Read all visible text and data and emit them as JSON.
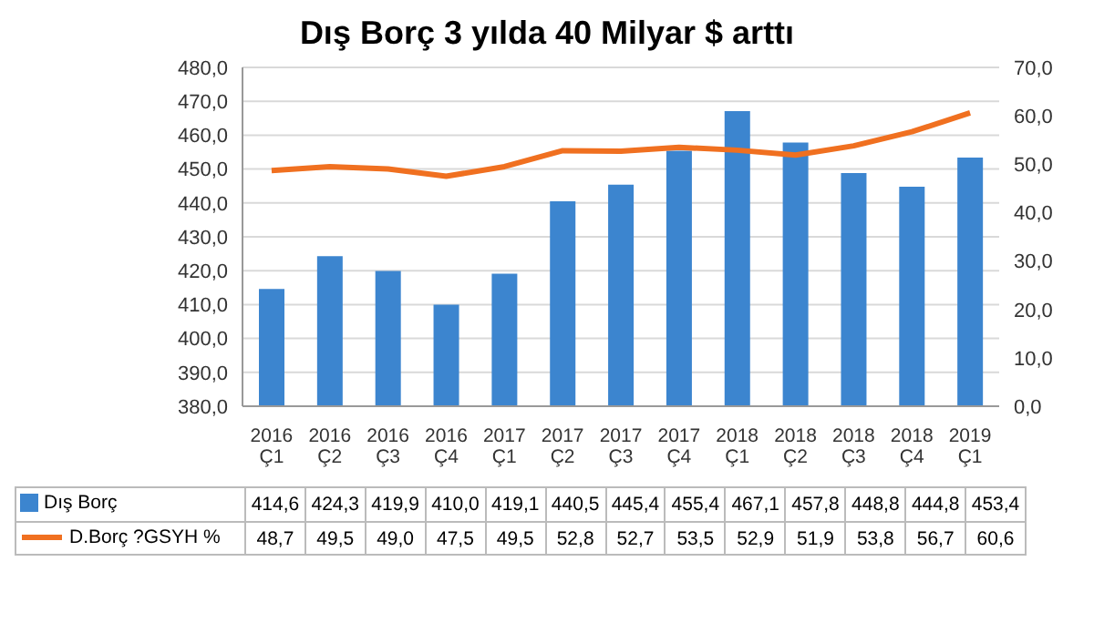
{
  "chart_data": {
    "type": "bar",
    "title": "Dış Borç 3 yılda 40 Milyar $ arttı",
    "categories": [
      "2016 Ç1",
      "2016 Ç2",
      "2016 Ç3",
      "2016 Ç4",
      "2017 Ç1",
      "2017 Ç2",
      "2017 Ç3",
      "2017 Ç4",
      "2018 Ç1",
      "2018 Ç2",
      "2018 Ç3",
      "2018 Ç4",
      "2019 Ç1"
    ],
    "series": [
      {
        "name": "Dış Borç",
        "color": "#3c85cf",
        "values": [
          414.6,
          424.3,
          419.9,
          410.0,
          419.1,
          440.5,
          445.4,
          455.4,
          467.1,
          457.8,
          448.8,
          444.8,
          453.4
        ],
        "value_labels": [
          "414,6",
          "424,3",
          "419,9",
          "410,0",
          "419,1",
          "440,5",
          "445,4",
          "455,4",
          "467,1",
          "457,8",
          "448,8",
          "444,8",
          "453,4"
        ]
      },
      {
        "name": "D.Borç ?GSYH %",
        "type": "line",
        "axis": "y2",
        "color": "#f07020",
        "values": [
          48.7,
          49.5,
          49.0,
          47.5,
          49.5,
          52.8,
          52.7,
          53.5,
          52.9,
          51.9,
          53.8,
          56.7,
          60.6
        ],
        "value_labels": [
          "48,7",
          "49,5",
          "49,0",
          "47,5",
          "49,5",
          "52,8",
          "52,7",
          "53,5",
          "52,9",
          "51,9",
          "53,8",
          "56,7",
          "60,6"
        ]
      }
    ],
    "ylim": [
      380,
      480
    ],
    "yticks": [
      {
        "value": 380,
        "label": "380,0"
      },
      {
        "value": 390,
        "label": "390,0"
      },
      {
        "value": 400,
        "label": "400,0"
      },
      {
        "value": 410,
        "label": "410,0"
      },
      {
        "value": 420,
        "label": "420,0"
      },
      {
        "value": 430,
        "label": "430,0"
      },
      {
        "value": 440,
        "label": "440,0"
      },
      {
        "value": 450,
        "label": "450,0"
      },
      {
        "value": 460,
        "label": "460,0"
      },
      {
        "value": 470,
        "label": "470,0"
      },
      {
        "value": 480,
        "label": "480,0"
      }
    ],
    "y2lim": [
      0,
      70
    ],
    "y2ticks": [
      {
        "value": 0,
        "label": "0,0"
      },
      {
        "value": 10,
        "label": "10,0"
      },
      {
        "value": 20,
        "label": "20,0"
      },
      {
        "value": 30,
        "label": "30,0"
      },
      {
        "value": 40,
        "label": "40,0"
      },
      {
        "value": 50,
        "label": "50,0"
      },
      {
        "value": 60,
        "label": "60,0"
      },
      {
        "value": 70,
        "label": "70,0"
      }
    ],
    "grid": "y",
    "legend": "bottom",
    "marker": "none"
  }
}
